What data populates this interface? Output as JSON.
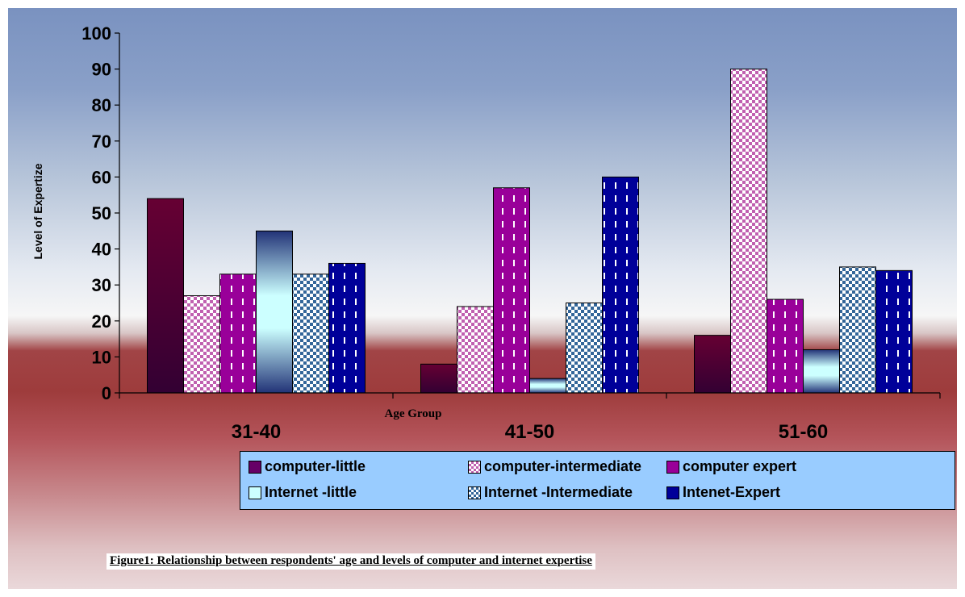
{
  "chart_data": {
    "type": "bar",
    "ylabel": "Level of Expertize",
    "xlabel": "Age Group",
    "ylim": [
      0,
      100
    ],
    "yticks": [
      0,
      10,
      20,
      30,
      40,
      50,
      60,
      70,
      80,
      90,
      100
    ],
    "categories": [
      "31-40",
      "41-50",
      "51-60"
    ],
    "series": [
      {
        "name": "computer-little",
        "values": [
          54,
          8,
          16
        ],
        "color": "#660066"
      },
      {
        "name": "computer-intermediate",
        "values": [
          27,
          24,
          90
        ],
        "color": "#ffccff"
      },
      {
        "name": "computer expert",
        "values": [
          33,
          57,
          26
        ],
        "color": "#990099"
      },
      {
        "name": "Internet -little",
        "values": [
          45,
          4,
          12
        ],
        "color": "#ccffff"
      },
      {
        "name": "Internet -Intermediate",
        "values": [
          33,
          25,
          35
        ],
        "color": "#336699"
      },
      {
        "name": "Intenet-Expert",
        "values": [
          36,
          60,
          34
        ],
        "color": "#000099"
      }
    ],
    "legend_position": "bottom",
    "grid": false
  },
  "caption": "Figure1:  Relationship between respondents' age and levels of computer and internet expertise"
}
